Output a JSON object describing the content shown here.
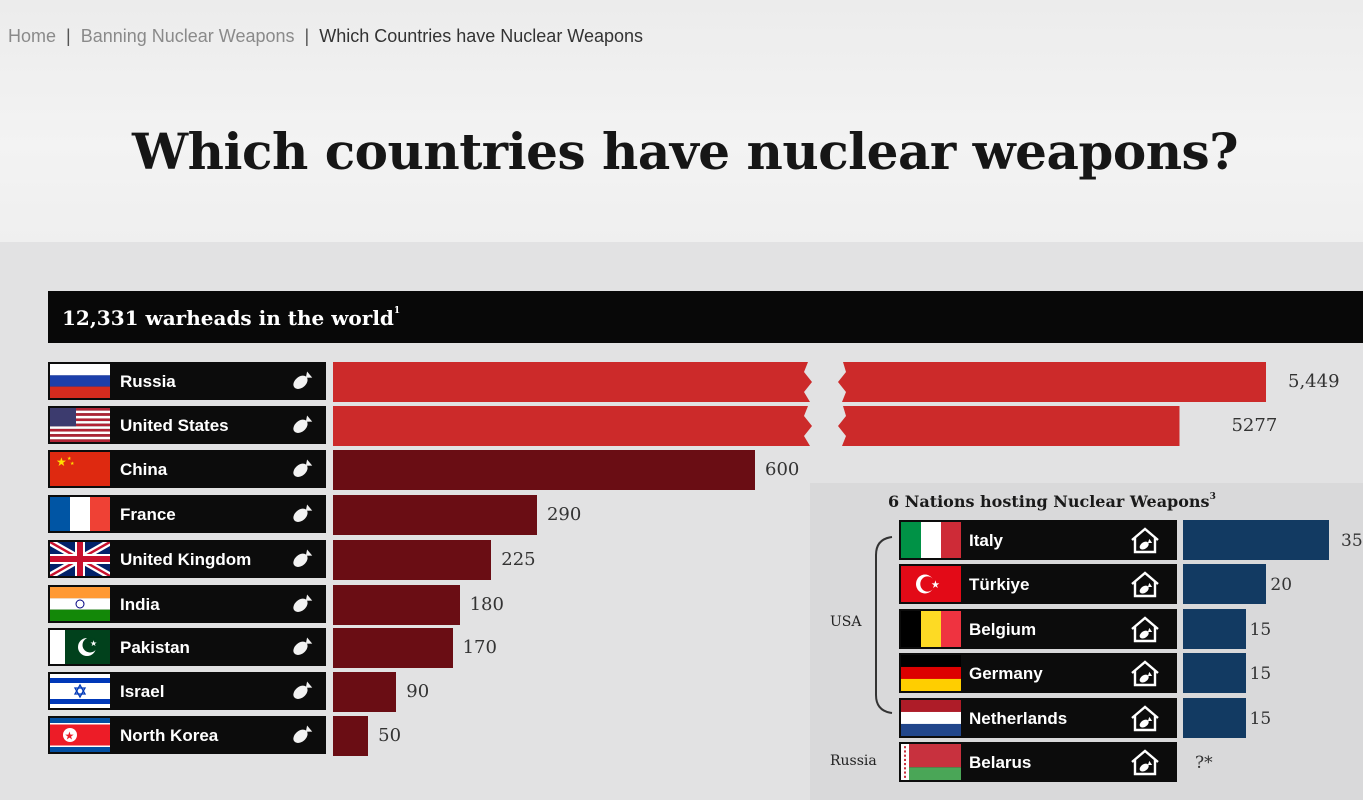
{
  "breadcrumb": {
    "home": "Home",
    "section": "Banning Nuclear Weapons",
    "current": "Which Countries have Nuclear Weapons"
  },
  "page_title": "Which countries have nuclear weapons?",
  "chart_data": [
    {
      "type": "bar",
      "title": "12,331 warheads in the world",
      "title_note": "1",
      "orientation": "horizontal",
      "broken_axis": true,
      "categories": [
        "Russia",
        "United States",
        "China",
        "France",
        "United Kingdom",
        "India",
        "Pakistan",
        "Israel",
        "North Korea"
      ],
      "values": [
        5449,
        5277,
        600,
        290,
        225,
        180,
        170,
        90,
        50
      ],
      "value_labels": [
        "5,449",
        "5277",
        "600",
        "290",
        "225",
        "180",
        "170",
        "90",
        "50"
      ],
      "colors": {
        "top_two": "#cc2a2a",
        "others": "#6a0d14"
      },
      "row_icon": "nuclear-bomb-icon"
    },
    {
      "type": "bar",
      "title": "6 Nations hosting Nuclear Weapons",
      "title_note": "3",
      "orientation": "horizontal",
      "categories": [
        "Italy",
        "Türkiye",
        "Belgium",
        "Germany",
        "Netherlands",
        "Belarus"
      ],
      "values": [
        35,
        20,
        15,
        15,
        15,
        null
      ],
      "value_labels": [
        "35",
        "20",
        "15",
        "15",
        "15",
        "?*"
      ],
      "groups": [
        {
          "label": "USA",
          "members": [
            "Italy",
            "Türkiye",
            "Belgium",
            "Germany",
            "Netherlands"
          ]
        },
        {
          "label": "Russia",
          "members": [
            "Belarus"
          ]
        }
      ],
      "colors": {
        "bar": "#123a62"
      },
      "row_icon": "house-bomb-icon"
    }
  ]
}
